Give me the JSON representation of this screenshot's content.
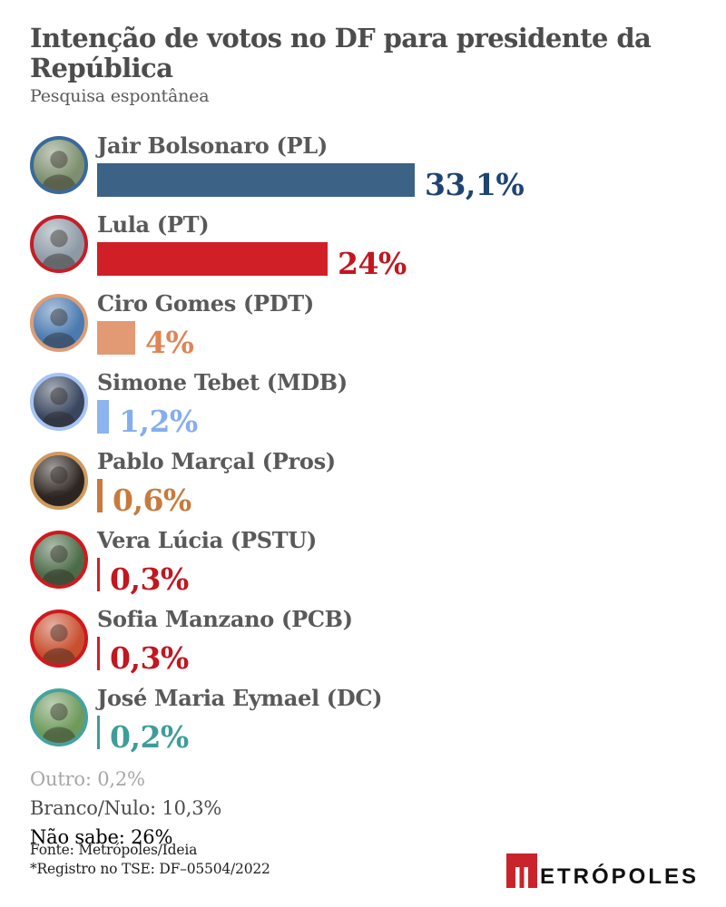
{
  "header": {
    "title": "Intenção de votos no DF para presidente da República",
    "subtitle": "Pesquisa espontânea"
  },
  "chart_data": {
    "type": "bar",
    "orientation": "horizontal",
    "title": "Intenção de votos no DF para presidente da República",
    "subtitle": "Pesquisa espontânea",
    "unit": "%",
    "categories": [
      "Jair Bolsonaro (PL)",
      "Lula (PT)",
      "Ciro Gomes (PDT)",
      "Simone Tebet (MDB)",
      "Pablo Marçal (Pros)",
      "Vera Lúcia (PSTU)",
      "Sofia Manzano (PCB)",
      "José Maria Eymael (DC)"
    ],
    "values": [
      33.1,
      24,
      4,
      1.2,
      0.6,
      0.3,
      0.3,
      0.2
    ],
    "data_labels": [
      "33,1%",
      "24%",
      "4%",
      "1,2%",
      "0,6%",
      "0,3%",
      "0,3%",
      "0,2%"
    ],
    "extra_categories": [
      "Outro",
      "Branco/Nulo",
      "Não sabe"
    ],
    "extra_values": [
      0.2,
      10.3,
      26
    ],
    "xlim": [
      0,
      35
    ],
    "grid": false,
    "legend": false
  },
  "candidates": [
    {
      "name": "Jair Bolsonaro (PL)",
      "value_pct": 33.1,
      "value_label": "33,1%",
      "bar_color": "#3c6386",
      "value_color": "#1d4473",
      "ring_color": "#3a699b",
      "avatar_bg": "#7d8f6e"
    },
    {
      "name": "Lula (PT)",
      "value_pct": 24,
      "value_label": "24%",
      "bar_color": "#d01f26",
      "value_color": "#c3161f",
      "ring_color": "#c41e26",
      "avatar_bg": "#8d9aa6"
    },
    {
      "name": "Ciro Gomes (PDT)",
      "value_pct": 4,
      "value_label": "4%",
      "bar_color": "#e19a74",
      "value_color": "#df8455",
      "ring_color": "#dd9d77",
      "avatar_bg": "#4a7ab0"
    },
    {
      "name": "Simone Tebet (MDB)",
      "value_pct": 1.2,
      "value_label": "1,2%",
      "bar_color": "#8cb4f0",
      "value_color": "#85aeee",
      "ring_color": "#a6c4f4",
      "avatar_bg": "#39465e"
    },
    {
      "name": "Pablo Marçal (Pros)",
      "value_pct": 0.6,
      "value_label": "0,6%",
      "bar_color": "#c87a3c",
      "value_color": "#c87a3c",
      "ring_color": "#d09a5e",
      "avatar_bg": "#2d2521"
    },
    {
      "name": "Vera Lúcia (PSTU)",
      "value_pct": 0.3,
      "value_label": "0,3%",
      "bar_color": "#d01f26",
      "value_color": "#c3161f",
      "ring_color": "#d0191f",
      "avatar_bg": "#4c6b48"
    },
    {
      "name": "Sofia Manzano (PCB)",
      "value_pct": 0.3,
      "value_label": "0,3%",
      "bar_color": "#d01f26",
      "value_color": "#c3161f",
      "ring_color": "#d0191f",
      "avatar_bg": "#c8502f"
    },
    {
      "name": "José Maria Eymael (DC)",
      "value_pct": 0.2,
      "value_label": "0,2%",
      "bar_color": "#3e9d9a",
      "value_color": "#3e9d9a",
      "ring_color": "#46a39c",
      "avatar_bg": "#6f9a5d"
    }
  ],
  "others": [
    {
      "label": "Outro: 0,2%",
      "color": "#a7a7a7"
    },
    {
      "label": "Branco/Nulo: 10,3%",
      "color": "#4c4c4c"
    },
    {
      "label": "Não sabe: 26%",
      "color": "#000000"
    }
  ],
  "footer": {
    "source": "Fonte: Metrópoles/Ideia",
    "registry": "*Registro no TSE: DF–05504/2022",
    "logo_text": "ETRÓPOLES",
    "logo_m_color": "#c9242b"
  }
}
